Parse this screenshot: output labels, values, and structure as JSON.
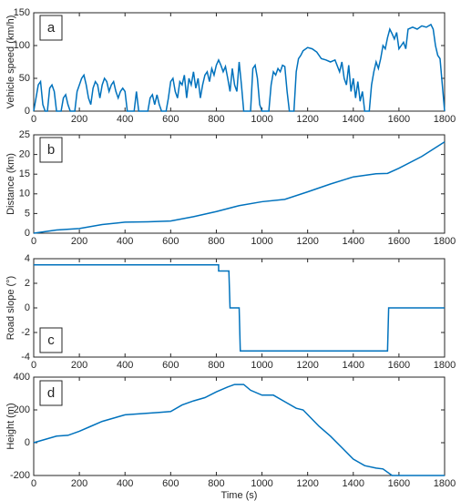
{
  "chart_data": [
    {
      "type": "line",
      "ylabel": "Vehicle speed (km/h)",
      "annotation": "a",
      "grid": false,
      "xlim": [
        0,
        1800
      ],
      "xticks": [
        0,
        200,
        400,
        600,
        800,
        1000,
        1200,
        1400,
        1600,
        1800
      ],
      "ylim": [
        0,
        150
      ],
      "yticks": [
        0,
        50,
        100,
        150
      ],
      "series": [
        {
          "color": "#0072bd",
          "x": [
            0,
            10,
            20,
            30,
            40,
            50,
            60,
            70,
            80,
            90,
            100,
            120,
            130,
            140,
            150,
            160,
            180,
            190,
            200,
            210,
            220,
            230,
            240,
            250,
            260,
            270,
            280,
            290,
            300,
            310,
            320,
            330,
            340,
            350,
            360,
            370,
            380,
            390,
            400,
            410,
            440,
            450,
            460,
            500,
            510,
            520,
            530,
            540,
            550,
            560,
            580,
            590,
            600,
            610,
            620,
            630,
            640,
            650,
            660,
            670,
            680,
            690,
            700,
            710,
            720,
            730,
            740,
            750,
            760,
            770,
            780,
            790,
            800,
            810,
            820,
            830,
            840,
            850,
            860,
            870,
            880,
            890,
            900,
            910,
            920,
            950,
            960,
            970,
            980,
            990,
            1000,
            1030,
            1040,
            1050,
            1060,
            1070,
            1080,
            1090,
            1100,
            1110,
            1120,
            1140,
            1150,
            1160,
            1170,
            1180,
            1200,
            1220,
            1240,
            1260,
            1280,
            1300,
            1320,
            1340,
            1350,
            1360,
            1370,
            1380,
            1390,
            1400,
            1410,
            1420,
            1430,
            1440,
            1450,
            1470,
            1480,
            1490,
            1500,
            1510,
            1520,
            1530,
            1540,
            1550,
            1560,
            1570,
            1580,
            1590,
            1600,
            1610,
            1620,
            1630,
            1640,
            1660,
            1680,
            1700,
            1720,
            1740,
            1750,
            1760,
            1770,
            1780,
            1790,
            1800
          ],
          "values": [
            0,
            20,
            40,
            45,
            10,
            0,
            0,
            35,
            40,
            30,
            0,
            0,
            20,
            25,
            10,
            0,
            0,
            30,
            40,
            50,
            55,
            40,
            20,
            10,
            35,
            45,
            40,
            20,
            40,
            50,
            45,
            30,
            40,
            45,
            30,
            20,
            30,
            35,
            30,
            0,
            0,
            30,
            0,
            0,
            20,
            25,
            10,
            25,
            10,
            0,
            0,
            20,
            45,
            50,
            30,
            20,
            45,
            40,
            55,
            20,
            50,
            40,
            60,
            35,
            50,
            20,
            40,
            55,
            60,
            45,
            65,
            55,
            70,
            78,
            70,
            60,
            68,
            50,
            30,
            65,
            40,
            30,
            75,
            40,
            0,
            0,
            65,
            70,
            50,
            10,
            0,
            0,
            40,
            60,
            55,
            65,
            60,
            70,
            68,
            30,
            0,
            0,
            60,
            80,
            85,
            92,
            97,
            95,
            90,
            80,
            78,
            75,
            78,
            60,
            75,
            50,
            40,
            70,
            30,
            50,
            20,
            45,
            15,
            30,
            0,
            0,
            40,
            60,
            75,
            65,
            80,
            100,
            95,
            112,
            125,
            118,
            110,
            120,
            95,
            100,
            105,
            95,
            125,
            128,
            125,
            130,
            128,
            132,
            125,
            100,
            85,
            80,
            40,
            0
          ]
        }
      ]
    },
    {
      "type": "line",
      "ylabel": "Distance (km)",
      "annotation": "b",
      "grid": false,
      "xlim": [
        0,
        1800
      ],
      "xticks": [
        0,
        200,
        400,
        600,
        800,
        1000,
        1200,
        1400,
        1600,
        1800
      ],
      "ylim": [
        0,
        25
      ],
      "yticks": [
        0,
        5,
        10,
        15,
        20,
        25
      ],
      "series": [
        {
          "color": "#0072bd",
          "x": [
            0,
            100,
            200,
            300,
            400,
            500,
            600,
            700,
            800,
            900,
            1000,
            1100,
            1200,
            1300,
            1400,
            1500,
            1550,
            1600,
            1700,
            1800
          ],
          "values": [
            0,
            0.8,
            1.2,
            2.2,
            2.8,
            2.9,
            3.1,
            4.2,
            5.5,
            7,
            8,
            8.6,
            10.5,
            12.5,
            14.3,
            15.1,
            15.2,
            16.5,
            19.5,
            23.2
          ]
        }
      ]
    },
    {
      "type": "line",
      "ylabel": "Road slope (°)",
      "annotation": "c",
      "grid": false,
      "xlim": [
        0,
        1800
      ],
      "xticks": [
        0,
        200,
        400,
        600,
        800,
        1000,
        1200,
        1400,
        1600,
        1800
      ],
      "ylim": [
        -4,
        4
      ],
      "yticks": [
        -4,
        -2,
        0,
        2,
        4
      ],
      "series": [
        {
          "color": "#0072bd",
          "x": [
            0,
            810,
            810,
            855,
            860,
            900,
            905,
            1550,
            1555,
            1800
          ],
          "values": [
            3.5,
            3.5,
            3,
            3,
            0,
            0,
            -3.5,
            -3.5,
            0,
            0
          ]
        }
      ]
    },
    {
      "type": "line",
      "ylabel": "Height (m)",
      "xlabel": "Time (s)",
      "annotation": "d",
      "grid": false,
      "xlim": [
        0,
        1800
      ],
      "xticks": [
        0,
        200,
        400,
        600,
        800,
        1000,
        1200,
        1400,
        1600,
        1800
      ],
      "ylim": [
        -200,
        400
      ],
      "yticks": [
        -200,
        0,
        200,
        400
      ],
      "series": [
        {
          "color": "#0072bd",
          "x": [
            0,
            50,
            100,
            150,
            200,
            250,
            300,
            350,
            400,
            450,
            500,
            550,
            600,
            650,
            700,
            750,
            800,
            850,
            880,
            920,
            950,
            1000,
            1050,
            1100,
            1150,
            1180,
            1250,
            1300,
            1350,
            1400,
            1450,
            1500,
            1530,
            1570,
            1800
          ],
          "values": [
            0,
            20,
            40,
            45,
            70,
            100,
            130,
            150,
            170,
            175,
            180,
            185,
            190,
            230,
            255,
            275,
            310,
            340,
            355,
            355,
            320,
            290,
            290,
            250,
            210,
            200,
            100,
            40,
            -30,
            -100,
            -140,
            -155,
            -160,
            -200,
            -200
          ]
        }
      ]
    }
  ]
}
